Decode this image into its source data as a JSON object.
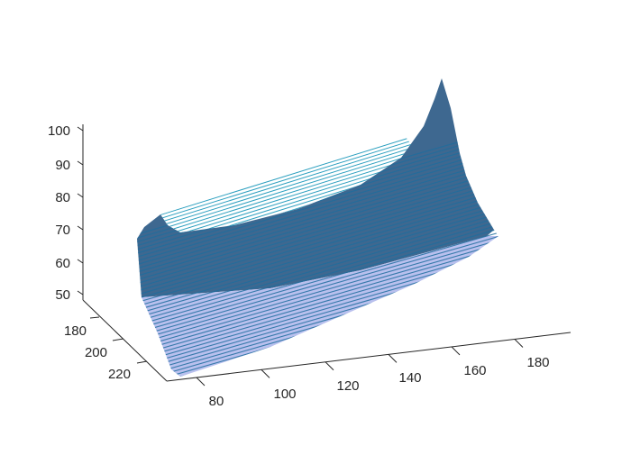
{
  "chart_data": {
    "type": "surface",
    "title": "",
    "xlabel": "",
    "ylabel": "",
    "zlabel": "",
    "x_ticks": [
      80,
      100,
      120,
      140,
      160,
      180
    ],
    "y_ticks": [
      180,
      200,
      220
    ],
    "z_ticks": [
      50,
      60,
      70,
      80,
      90,
      100
    ],
    "z_range": [
      45,
      100
    ],
    "grid": false,
    "colors": {
      "surface_dark": "#3e6890",
      "surface_light": "#b9c0ee",
      "mesh_line": "#1f6e9e",
      "rim_line": "#2b9fbf",
      "axis": "#262626"
    }
  }
}
